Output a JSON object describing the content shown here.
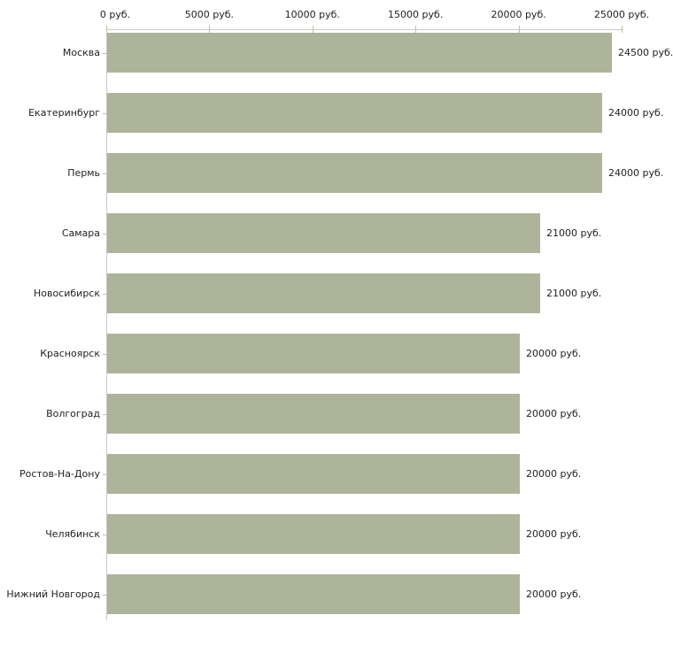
{
  "chart_data": {
    "type": "bar",
    "orientation": "horizontal",
    "title": "",
    "xlabel": "",
    "ylabel": "",
    "unit": "руб.",
    "axis_position": "top",
    "grid": false,
    "legend": false,
    "xlim": [
      0,
      25000
    ],
    "x_tick_values": [
      0,
      5000,
      10000,
      15000,
      20000,
      25000
    ],
    "x_ticks": [
      "0 руб.",
      "5000 руб.",
      "10000 руб.",
      "15000 руб.",
      "20000 руб.",
      "25000 руб."
    ],
    "categories": [
      "Москва",
      "Екатеринбург",
      "Пермь",
      "Самара",
      "Новосибирск",
      "Красноярск",
      "Волгоград",
      "Ростов-На-Дону",
      "Челябинск",
      "Нижний Новгород"
    ],
    "values": [
      24500,
      24000,
      24000,
      21000,
      21000,
      20000,
      20000,
      20000,
      20000,
      20000
    ],
    "value_labels": [
      "24500 руб.",
      "24000 руб.",
      "24000 руб.",
      "21000 руб.",
      "21000 руб.",
      "20000 руб.",
      "20000 руб.",
      "20000 руб.",
      "20000 руб.",
      "20000 руб."
    ],
    "colors": {
      "bar": "#adb49a",
      "axis_line": "#c9c9c9",
      "tick_mark": "#c2c29a",
      "text": "#222222",
      "background": "#ffffff"
    }
  }
}
